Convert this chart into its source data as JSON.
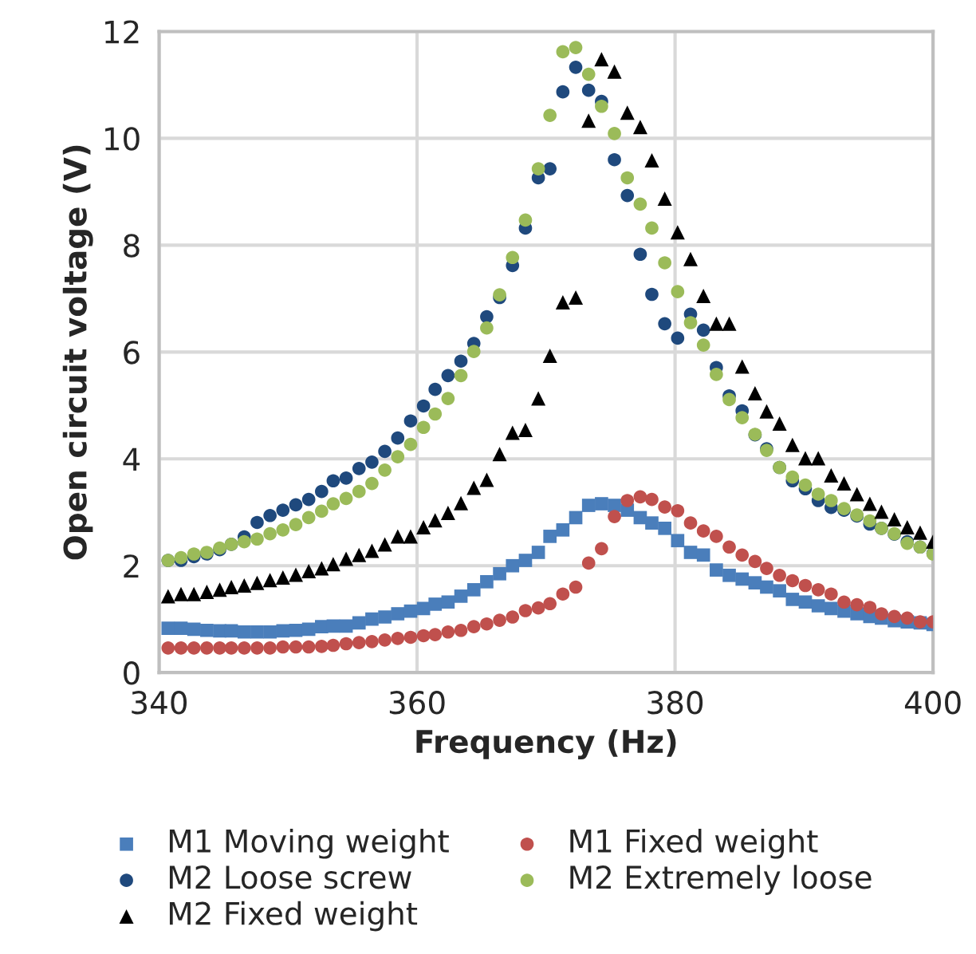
{
  "chart_data": {
    "type": "scatter",
    "xlabel": "Frequency (Hz)",
    "ylabel": "Open circuit voltage (V)",
    "x": [
      340.7,
      341.7,
      342.7,
      343.7,
      344.7,
      345.6,
      346.6,
      347.6,
      348.6,
      349.6,
      350.6,
      351.6,
      352.6,
      353.5,
      354.5,
      355.5,
      356.5,
      357.5,
      358.5,
      359.5,
      360.5,
      361.4,
      362.4,
      363.4,
      364.4,
      365.4,
      366.4,
      367.4,
      368.4,
      369.4,
      370.3,
      371.3,
      372.3,
      373.3,
      374.3,
      375.3,
      376.3,
      377.3,
      378.2,
      379.2,
      380.2,
      381.2,
      382.2,
      383.2,
      384.2,
      385.2,
      386.2,
      387.1,
      388.1,
      389.1,
      390.1,
      391.1,
      392.1,
      393.1,
      394.1,
      395.1,
      396.0,
      397.0,
      398.0,
      399.0,
      400.0
    ],
    "series": [
      {
        "name": "M1 Moving weight",
        "color": "#4a7ebb",
        "marker": "square",
        "values": [
          0.83,
          0.83,
          0.81,
          0.79,
          0.78,
          0.78,
          0.76,
          0.76,
          0.76,
          0.78,
          0.79,
          0.81,
          0.86,
          0.87,
          0.87,
          0.93,
          1.0,
          1.04,
          1.1,
          1.15,
          1.2,
          1.28,
          1.32,
          1.43,
          1.55,
          1.7,
          1.85,
          2.0,
          2.1,
          2.25,
          2.55,
          2.67,
          2.9,
          3.13,
          3.16,
          3.13,
          3.04,
          2.9,
          2.8,
          2.7,
          2.47,
          2.25,
          2.2,
          1.92,
          1.82,
          1.75,
          1.68,
          1.6,
          1.53,
          1.37,
          1.32,
          1.25,
          1.2,
          1.15,
          1.1,
          1.05,
          1.02,
          0.97,
          0.95,
          0.93,
          0.9
        ]
      },
      {
        "name": "M1 Fixed weight",
        "color": "#c0504d",
        "marker": "circle",
        "values": [
          0.46,
          0.46,
          0.46,
          0.46,
          0.46,
          0.46,
          0.46,
          0.46,
          0.46,
          0.48,
          0.48,
          0.48,
          0.49,
          0.51,
          0.54,
          0.56,
          0.58,
          0.61,
          0.64,
          0.66,
          0.69,
          0.71,
          0.76,
          0.79,
          0.86,
          0.91,
          0.98,
          1.04,
          1.16,
          1.21,
          1.29,
          1.47,
          1.6,
          2.05,
          2.32,
          2.92,
          3.22,
          3.29,
          3.24,
          3.1,
          3.03,
          2.8,
          2.65,
          2.55,
          2.35,
          2.2,
          2.08,
          1.95,
          1.82,
          1.72,
          1.63,
          1.55,
          1.47,
          1.32,
          1.27,
          1.22,
          1.1,
          1.05,
          1.02,
          0.95,
          0.95
        ]
      },
      {
        "name": "M2 Loose screw",
        "color": "#1f497d",
        "marker": "circle",
        "values": [
          2.1,
          2.1,
          2.17,
          2.22,
          2.3,
          2.4,
          2.54,
          2.81,
          2.94,
          3.04,
          3.14,
          3.24,
          3.39,
          3.59,
          3.64,
          3.82,
          3.94,
          4.14,
          4.39,
          4.71,
          4.99,
          5.3,
          5.56,
          5.83,
          6.16,
          6.66,
          7.02,
          7.62,
          8.32,
          9.26,
          9.43,
          10.87,
          11.33,
          10.9,
          10.69,
          9.6,
          8.93,
          7.83,
          7.08,
          6.53,
          6.26,
          6.71,
          6.41,
          5.71,
          5.18,
          4.9,
          4.45,
          4.19,
          3.84,
          3.59,
          3.44,
          3.22,
          3.09,
          3.04,
          2.93,
          2.78,
          2.7,
          2.59,
          2.45,
          2.35,
          2.23
        ]
      },
      {
        "name": "M2 Extremely loose",
        "color": "#9bbb59",
        "marker": "circle",
        "values": [
          2.1,
          2.15,
          2.22,
          2.25,
          2.33,
          2.4,
          2.45,
          2.5,
          2.6,
          2.67,
          2.77,
          2.9,
          3.02,
          3.16,
          3.26,
          3.39,
          3.54,
          3.79,
          4.04,
          4.27,
          4.59,
          4.84,
          5.13,
          5.56,
          6.01,
          6.45,
          7.07,
          7.77,
          8.47,
          9.43,
          10.43,
          11.62,
          11.7,
          11.2,
          10.6,
          10.09,
          9.26,
          8.77,
          8.32,
          7.67,
          7.13,
          6.55,
          6.13,
          5.58,
          5.11,
          4.77,
          4.46,
          4.16,
          3.84,
          3.66,
          3.51,
          3.34,
          3.22,
          3.07,
          2.95,
          2.84,
          2.7,
          2.6,
          2.42,
          2.35,
          2.22
        ]
      },
      {
        "name": "M2 Fixed weight",
        "color": "#000000",
        "marker": "triangle",
        "values": [
          1.43,
          1.47,
          1.47,
          1.51,
          1.55,
          1.6,
          1.63,
          1.68,
          1.73,
          1.78,
          1.83,
          1.9,
          1.95,
          2.03,
          2.13,
          2.2,
          2.28,
          2.4,
          2.55,
          2.55,
          2.72,
          2.85,
          2.99,
          3.17,
          3.46,
          3.61,
          4.09,
          4.49,
          4.54,
          5.13,
          5.93,
          6.93,
          7.02,
          10.33,
          11.48,
          11.25,
          10.48,
          10.21,
          9.59,
          8.87,
          8.24,
          7.74,
          7.05,
          6.53,
          6.53,
          5.73,
          5.23,
          4.89,
          4.66,
          4.26,
          4.01,
          4.01,
          3.69,
          3.54,
          3.34,
          3.16,
          3.01,
          2.87,
          2.72,
          2.62,
          2.45
        ]
      }
    ],
    "xlim": [
      340,
      400
    ],
    "xticks": [
      340,
      360,
      380,
      400
    ],
    "ylim": [
      0,
      12
    ],
    "yticks": [
      0,
      2,
      4,
      6,
      8,
      10,
      12
    ],
    "grid": true,
    "legend": "bottom"
  }
}
